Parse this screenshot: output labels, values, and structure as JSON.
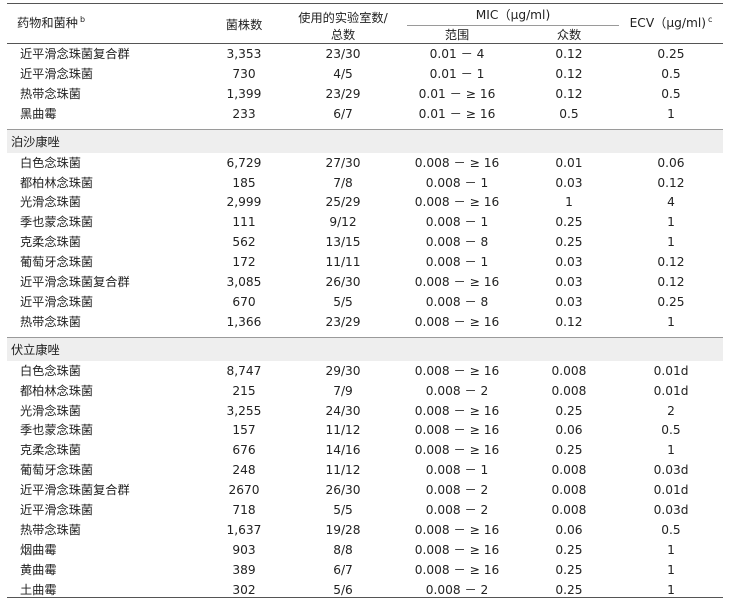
{
  "header": {
    "col1": "药物和菌种",
    "col1_sup": "b",
    "col2": "菌株数",
    "col3_line1": "使用的实验室数/",
    "col3_line2": "总数",
    "mic": "MIC（μg/ml)",
    "mic_range": "范围",
    "mic_mode": "众数",
    "ecv": "ECV（μg/ml)",
    "ecv_sup": "c"
  },
  "groups": [
    {
      "title": "",
      "rows": [
        [
          "近平滑念珠菌复合群",
          "3,353",
          "23/30",
          "0.01 － 4",
          "0.12",
          "0.25"
        ],
        [
          "近平滑念珠菌",
          "730",
          "4/5",
          "0.01 － 1",
          "0.12",
          "0.5"
        ],
        [
          "热带念珠菌",
          "1,399",
          "23/29",
          "0.01 － ≥ 16",
          "0.12",
          "0.5"
        ],
        [
          "黑曲霉",
          "233",
          "6/7",
          "0.01 － ≥ 16",
          "0.5",
          "1"
        ]
      ]
    },
    {
      "title": "泊沙康唑",
      "rows": [
        [
          "白色念珠菌",
          "6,729",
          "27/30",
          "0.008 － ≥ 16",
          "0.01",
          "0.06"
        ],
        [
          "都柏林念珠菌",
          "185",
          "7/8",
          "0.008 － 1",
          "0.03",
          "0.12"
        ],
        [
          "光滑念珠菌",
          "2,999",
          "25/29",
          "0.008 － ≥ 16",
          "1",
          "4"
        ],
        [
          "季也蒙念珠菌",
          "111",
          "9/12",
          "0.008 － 1",
          "0.25",
          "1"
        ],
        [
          "克柔念珠菌",
          "562",
          "13/15",
          "0.008 － 8",
          "0.25",
          "1"
        ],
        [
          "葡萄牙念珠菌",
          "172",
          "11/11",
          "0.008 － 1",
          "0.03",
          "0.12"
        ],
        [
          "近平滑念珠菌复合群",
          "3,085",
          "26/30",
          "0.008 － ≥ 16",
          "0.03",
          "0.12"
        ],
        [
          "近平滑念珠菌",
          "670",
          "5/5",
          "0.008 － 8",
          "0.03",
          "0.25"
        ],
        [
          "热带念珠菌",
          "1,366",
          "23/29",
          "0.008 － ≥ 16",
          "0.12",
          "1"
        ]
      ]
    },
    {
      "title": "伏立康唑",
      "rows": [
        [
          "白色念珠菌",
          "8,747",
          "29/30",
          "0.008 － ≥ 16",
          "0.008",
          "0.01d"
        ],
        [
          "都柏林念珠菌",
          "215",
          "7/9",
          "0.008 － 2",
          "0.008",
          "0.01d"
        ],
        [
          "光滑念珠菌",
          "3,255",
          "24/30",
          "0.008 － ≥ 16",
          "0.25",
          "2"
        ],
        [
          "季也蒙念珠菌",
          "157",
          "11/12",
          "0.008 － ≥ 16",
          "0.06",
          "0.5"
        ],
        [
          "克柔念珠菌",
          "676",
          "14/16",
          "0.008 － ≥ 16",
          "0.25",
          "1"
        ],
        [
          "葡萄牙念珠菌",
          "248",
          "11/12",
          "0.008 － 1",
          "0.008",
          "0.03d"
        ],
        [
          "近平滑念珠菌复合群",
          "2670",
          "26/30",
          "0.008 － 2",
          "0.008",
          "0.01d"
        ],
        [
          "近平滑念珠菌",
          "718",
          "5/5",
          "0.008 － 2",
          "0.008",
          "0.03d"
        ],
        [
          "热带念珠菌",
          "1,637",
          "19/28",
          "0.008 － ≥ 16",
          "0.06",
          "0.5"
        ],
        [
          "烟曲霉",
          "903",
          "8/8",
          "0.008 － ≥ 16",
          "0.25",
          "1"
        ],
        [
          "黄曲霉",
          "389",
          "6/7",
          "0.008 － ≥ 16",
          "0.25",
          "1"
        ],
        [
          "土曲霉",
          "302",
          "5/6",
          "0.008 － 2",
          "0.25",
          "1"
        ]
      ]
    }
  ]
}
